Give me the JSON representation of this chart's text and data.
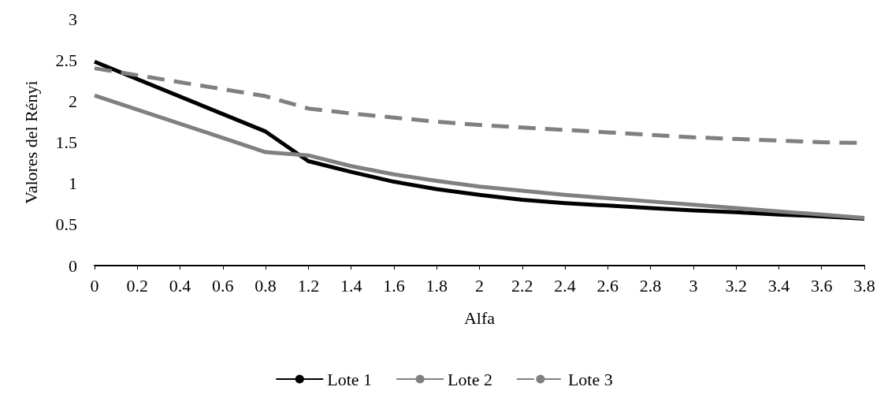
{
  "chart_data": {
    "type": "line",
    "xlabel": "Alfa",
    "ylabel": "Valores del Rényi",
    "categories": [
      "0",
      "0.2",
      "0.4",
      "0.6",
      "0.8",
      "1.2",
      "1.4",
      "1.6",
      "1.8",
      "2",
      "2.2",
      "2.4",
      "2.6",
      "2.8",
      "3",
      "3.2",
      "3.4",
      "3.6",
      "3.8"
    ],
    "series": [
      {
        "name": "Lote 1",
        "color": "#000000",
        "line_style": "solid",
        "values": [
          2.48,
          null,
          null,
          null,
          1.63,
          1.27,
          1.14,
          1.02,
          0.93,
          0.86,
          0.8,
          0.76,
          0.73,
          0.7,
          0.67,
          0.65,
          0.62,
          0.6,
          0.57
        ]
      },
      {
        "name": "Lote 2",
        "color": "#808080",
        "line_style": "solid",
        "values": [
          2.07,
          null,
          null,
          null,
          1.38,
          1.34,
          1.21,
          1.11,
          1.03,
          0.96,
          0.91,
          0.86,
          0.82,
          0.78,
          0.74,
          0.7,
          0.66,
          0.62,
          0.58
        ]
      },
      {
        "name": "Lote 3",
        "color": "#808080",
        "line_style": "dashed",
        "values": [
          2.4,
          null,
          null,
          null,
          2.06,
          1.91,
          1.85,
          1.8,
          1.75,
          1.71,
          1.68,
          1.65,
          1.62,
          1.59,
          1.56,
          1.54,
          1.52,
          1.5,
          1.49
        ]
      }
    ],
    "ylim": [
      0,
      3
    ],
    "yticks": [
      0,
      0.5,
      1,
      1.5,
      2,
      2.5,
      3
    ],
    "grid": false,
    "legend": "bottom",
    "marker": "none"
  }
}
